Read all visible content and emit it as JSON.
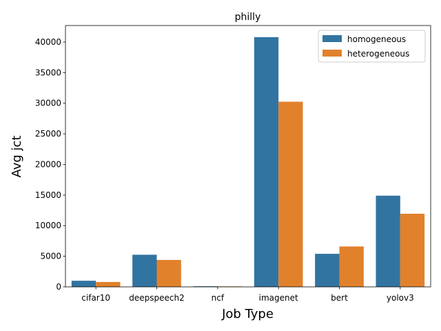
{
  "chart_data": {
    "type": "bar",
    "title": "philly",
    "xlabel": "Job Type",
    "ylabel": "Avg jct",
    "categories": [
      "cifar10",
      "deepspeech2",
      "ncf",
      "imagenet",
      "bert",
      "yolov3"
    ],
    "series": [
      {
        "name": "homogeneous",
        "color": "#3274a1",
        "values": [
          1000,
          5250,
          100,
          40800,
          5400,
          14900
        ]
      },
      {
        "name": "heterogeneous",
        "color": "#e1812c",
        "values": [
          800,
          4400,
          80,
          30250,
          6600,
          11950
        ]
      }
    ],
    "ylim": [
      0,
      42700
    ],
    "yticks": [
      0,
      5000,
      10000,
      15000,
      20000,
      25000,
      30000,
      35000,
      40000
    ],
    "legend": "top-right",
    "grid": false
  }
}
